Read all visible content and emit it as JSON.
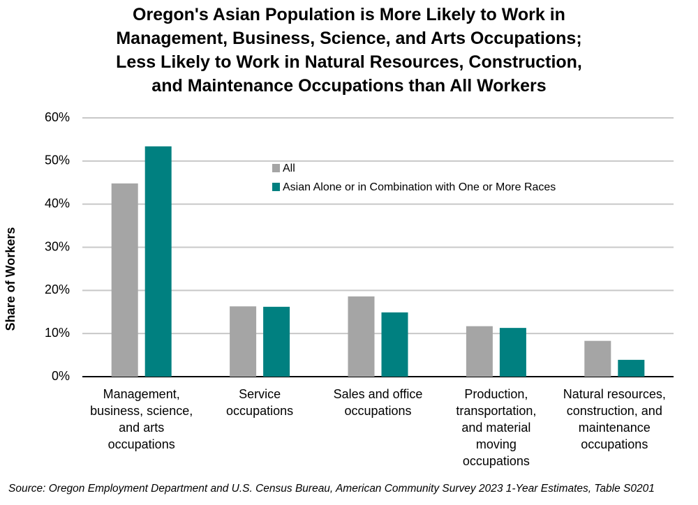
{
  "chart_data": {
    "type": "bar",
    "title": "Oregon's Asian Population is More Likely to Work in\nManagement, Business, Science, and Arts Occupations;\nLess Likely to Work in Natural Resources, Construction,\nand Maintenance Occupations than All Workers",
    "y_label": "Share of Workers",
    "source": "Source: Oregon Employment Department and U.S. Census Bureau, American Community Survey 2023 1-Year Estimates, Table S0201",
    "categories": [
      "Management,\nbusiness, science,\nand arts\noccupations",
      "Service\noccupations",
      "Sales and office\noccupations",
      "Production,\ntransportation,\nand material\nmoving\noccupations",
      "Natural resources,\nconstruction, and\nmaintenance\noccupations"
    ],
    "series": [
      {
        "name": "All",
        "color": "#a5a5a5",
        "values": [
          44.8,
          16.3,
          18.6,
          11.7,
          8.3
        ]
      },
      {
        "name": "Asian Alone or in Combination with One or More Races",
        "color": "#008080",
        "values": [
          53.4,
          16.2,
          14.9,
          11.3,
          3.9
        ]
      }
    ],
    "ylim": [
      0,
      60
    ],
    "yticks": [
      {
        "value": 0,
        "label": "0%"
      },
      {
        "value": 10,
        "label": "10%"
      },
      {
        "value": 20,
        "label": "20%"
      },
      {
        "value": 30,
        "label": "30%"
      },
      {
        "value": 40,
        "label": "40%"
      },
      {
        "value": 50,
        "label": "50%"
      },
      {
        "value": 60,
        "label": "60%"
      }
    ],
    "grid": true
  }
}
